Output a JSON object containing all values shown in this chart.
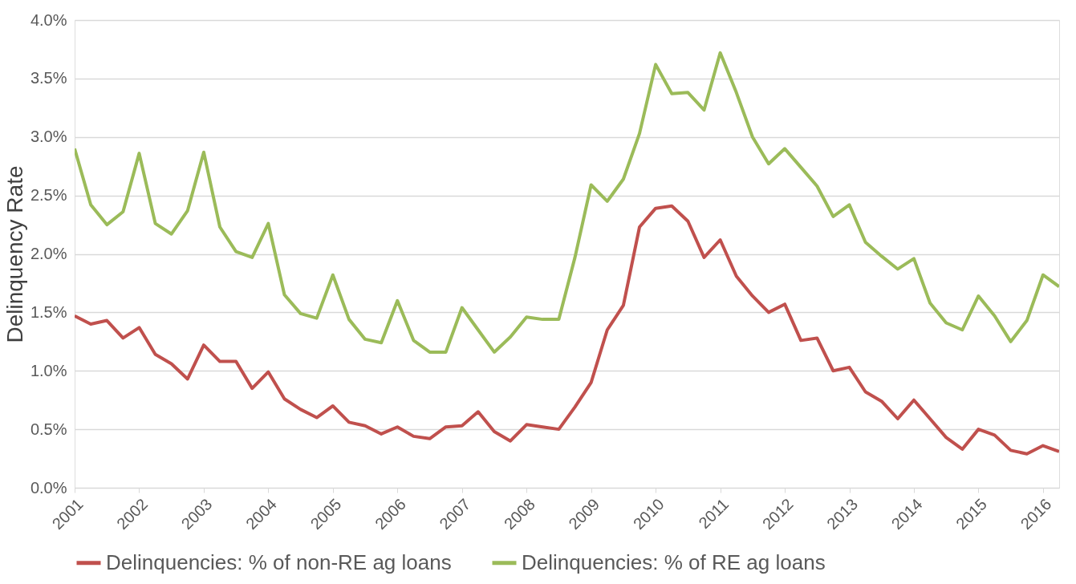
{
  "chart_data": {
    "type": "line",
    "ylabel": "Delinquency Rate",
    "x": [
      2001,
      2001.25,
      2001.5,
      2001.75,
      2002,
      2002.25,
      2002.5,
      2002.75,
      2003,
      2003.25,
      2003.5,
      2003.75,
      2004,
      2004.25,
      2004.5,
      2004.75,
      2005,
      2005.25,
      2005.5,
      2005.75,
      2006,
      2006.25,
      2006.5,
      2006.75,
      2007,
      2007.25,
      2007.5,
      2007.75,
      2008,
      2008.25,
      2008.5,
      2008.75,
      2009,
      2009.25,
      2009.5,
      2009.75,
      2010,
      2010.25,
      2010.5,
      2010.75,
      2011,
      2011.25,
      2011.5,
      2011.75,
      2012,
      2012.25,
      2012.5,
      2012.75,
      2013,
      2013.25,
      2013.5,
      2013.75,
      2014,
      2014.25,
      2014.5,
      2014.75,
      2015,
      2015.25,
      2015.5,
      2015.75,
      2016,
      2016.25
    ],
    "series": [
      {
        "name": "Delinquencies: % of non-RE ag loans",
        "color": "#c0504d",
        "values": [
          1.47,
          1.4,
          1.43,
          1.28,
          1.37,
          1.14,
          1.06,
          0.93,
          1.22,
          1.08,
          1.08,
          0.85,
          0.99,
          0.76,
          0.67,
          0.6,
          0.7,
          0.56,
          0.53,
          0.46,
          0.52,
          0.44,
          0.42,
          0.52,
          0.53,
          0.65,
          0.48,
          0.4,
          0.54,
          0.52,
          0.5,
          0.69,
          0.9,
          1.35,
          1.56,
          2.23,
          2.39,
          2.41,
          2.28,
          1.97,
          2.12,
          1.81,
          1.64,
          1.5,
          1.57,
          1.26,
          1.28,
          1.0,
          1.03,
          0.82,
          0.74,
          0.59,
          0.75,
          0.59,
          0.43,
          0.33,
          0.5,
          0.45,
          0.32,
          0.29,
          0.36,
          0.31
        ]
      },
      {
        "name": "Delinquencies: % of RE ag loans",
        "color": "#9bbb59",
        "values": [
          2.9,
          2.42,
          2.25,
          2.36,
          2.86,
          2.26,
          2.17,
          2.37,
          2.87,
          2.23,
          2.02,
          1.97,
          2.26,
          1.65,
          1.49,
          1.45,
          1.82,
          1.44,
          1.27,
          1.24,
          1.6,
          1.26,
          1.16,
          1.16,
          1.54,
          1.35,
          1.16,
          1.29,
          1.46,
          1.44,
          1.44,
          1.97,
          2.59,
          2.45,
          2.64,
          3.03,
          3.62,
          3.37,
          3.38,
          3.23,
          3.72,
          3.38,
          3.0,
          2.77,
          2.9,
          2.74,
          2.58,
          2.32,
          2.42,
          2.1,
          1.98,
          1.87,
          1.96,
          1.58,
          1.41,
          1.35,
          1.64,
          1.47,
          1.25,
          1.43,
          1.82,
          1.72
        ]
      }
    ],
    "xlim": [
      2001,
      2016.25
    ],
    "xticks": [
      2001,
      2002,
      2003,
      2004,
      2005,
      2006,
      2007,
      2008,
      2009,
      2010,
      2011,
      2012,
      2013,
      2014,
      2015,
      2016
    ],
    "ylim": [
      0,
      4
    ],
    "yticks": [
      {
        "value": 0,
        "label": "0.0%"
      },
      {
        "value": 0.5,
        "label": "0.5%"
      },
      {
        "value": 1,
        "label": "1.0%"
      },
      {
        "value": 1.5,
        "label": "1.5%"
      },
      {
        "value": 2,
        "label": "2.0%"
      },
      {
        "value": 2.5,
        "label": "2.5%"
      },
      {
        "value": 3,
        "label": "3.0%"
      },
      {
        "value": 3.5,
        "label": "3.5%"
      },
      {
        "value": 4,
        "label": "4.0%"
      }
    ],
    "grid": "y",
    "legend": "bottom",
    "marker": "none",
    "line_style": "solid"
  }
}
